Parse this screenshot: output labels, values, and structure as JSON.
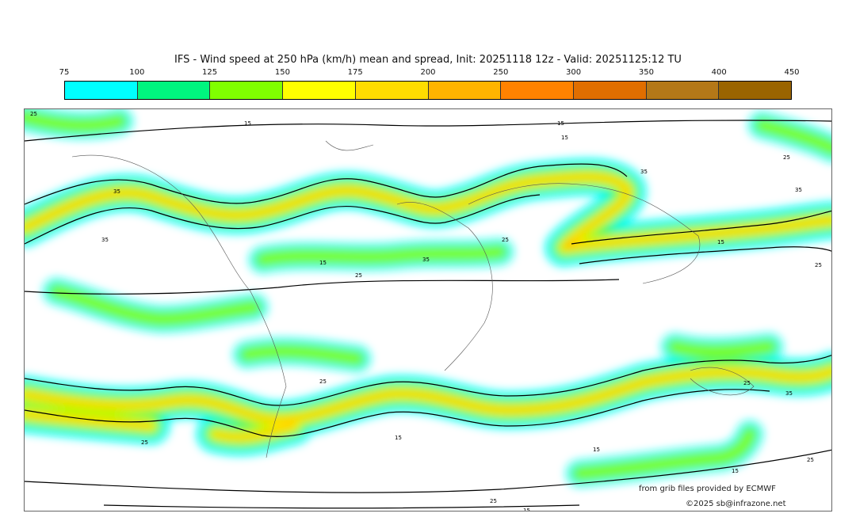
{
  "title": "IFS - Wind speed at 250 hPa (km/h) mean and spread, Init: 20251118 12z - Valid: 20251125:12 TU",
  "legend": {
    "ticks": [
      "75",
      "100",
      "125",
      "150",
      "175",
      "200",
      "250",
      "300",
      "350",
      "400",
      "450"
    ],
    "colors": [
      "#00ffff",
      "#00f57f",
      "#80ff00",
      "#ffff00",
      "#ffdc00",
      "#ffb400",
      "#ff8200",
      "#e06e00",
      "#b47818",
      "#9a6400"
    ]
  },
  "contour_labels": [
    "25",
    "15",
    "15",
    "15",
    "35",
    "35",
    "35",
    "25",
    "15",
    "25",
    "25",
    "15",
    "25",
    "35",
    "35",
    "25",
    "35",
    "25",
    "15",
    "25",
    "15",
    "25",
    "25",
    "15",
    "15"
  ],
  "credits": {
    "source": "from grib files provided by ECMWF",
    "copyright": "©2025 sb@infrazone.net"
  }
}
